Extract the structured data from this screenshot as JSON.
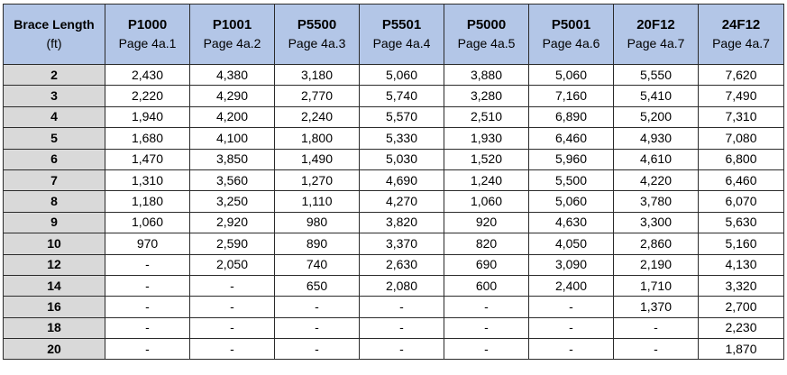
{
  "table": {
    "header": {
      "first": {
        "title": "Brace Length",
        "sub": "(ft)"
      },
      "columns": [
        {
          "title": "P1000",
          "sub": "Page 4a.1"
        },
        {
          "title": "P1001",
          "sub": "Page 4a.2"
        },
        {
          "title": "P5500",
          "sub": "Page 4a.3"
        },
        {
          "title": "P5501",
          "sub": "Page 4a.4"
        },
        {
          "title": "P5000",
          "sub": "Page 4a.5"
        },
        {
          "title": "P5001",
          "sub": "Page 4a.6"
        },
        {
          "title": "20F12",
          "sub": "Page 4a.7"
        },
        {
          "title": "24F12",
          "sub": "Page 4a.7"
        }
      ]
    },
    "rows": [
      {
        "length": "2",
        "values": [
          "2,430",
          "4,380",
          "3,180",
          "5,060",
          "3,880",
          "5,060",
          "5,550",
          "7,620"
        ]
      },
      {
        "length": "3",
        "values": [
          "2,220",
          "4,290",
          "2,770",
          "5,740",
          "3,280",
          "7,160",
          "5,410",
          "7,490"
        ]
      },
      {
        "length": "4",
        "values": [
          "1,940",
          "4,200",
          "2,240",
          "5,570",
          "2,510",
          "6,890",
          "5,200",
          "7,310"
        ]
      },
      {
        "length": "5",
        "values": [
          "1,680",
          "4,100",
          "1,800",
          "5,330",
          "1,930",
          "6,460",
          "4,930",
          "7,080"
        ]
      },
      {
        "length": "6",
        "values": [
          "1,470",
          "3,850",
          "1,490",
          "5,030",
          "1,520",
          "5,960",
          "4,610",
          "6,800"
        ]
      },
      {
        "length": "7",
        "values": [
          "1,310",
          "3,560",
          "1,270",
          "4,690",
          "1,240",
          "5,500",
          "4,220",
          "6,460"
        ]
      },
      {
        "length": "8",
        "values": [
          "1,180",
          "3,250",
          "1,110",
          "4,270",
          "1,060",
          "5,060",
          "3,780",
          "6,070"
        ]
      },
      {
        "length": "9",
        "values": [
          "1,060",
          "2,920",
          "980",
          "3,820",
          "920",
          "4,630",
          "3,300",
          "5,630"
        ]
      },
      {
        "length": "10",
        "values": [
          "970",
          "2,590",
          "890",
          "3,370",
          "820",
          "4,050",
          "2,860",
          "5,160"
        ]
      },
      {
        "length": "12",
        "values": [
          "-",
          "2,050",
          "740",
          "2,630",
          "690",
          "3,090",
          "2,190",
          "4,130"
        ]
      },
      {
        "length": "14",
        "values": [
          "-",
          "-",
          "650",
          "2,080",
          "600",
          "2,400",
          "1,710",
          "3,320"
        ]
      },
      {
        "length": "16",
        "values": [
          "-",
          "-",
          "-",
          "-",
          "-",
          "-",
          "1,370",
          "2,700"
        ]
      },
      {
        "length": "18",
        "values": [
          "-",
          "-",
          "-",
          "-",
          "-",
          "-",
          "-",
          "2,230"
        ]
      },
      {
        "length": "20",
        "values": [
          "-",
          "-",
          "-",
          "-",
          "-",
          "-",
          "-",
          "1,870"
        ]
      }
    ],
    "colors": {
      "header_bg": "#b3c6e7",
      "first_col_bg": "#d9d9d9",
      "border": "#2b2b2b"
    }
  }
}
